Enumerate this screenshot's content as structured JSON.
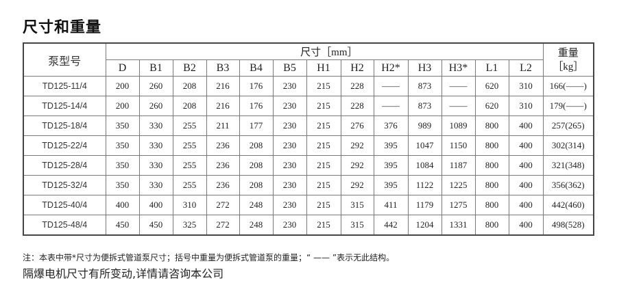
{
  "title": "尺寸和重量",
  "table": {
    "model_header": "泵型号",
    "dim_group_header": "尺寸［mm］",
    "weight_header_line1": "重量",
    "weight_header_line2": "［kg］",
    "columns": [
      "D",
      "B1",
      "B2",
      "B3",
      "B4",
      "B5",
      "H1",
      "H2",
      "H2*",
      "H3",
      "H3*",
      "L1",
      "L2"
    ],
    "rows": [
      [
        "TD125-11/4",
        "200",
        "260",
        "208",
        "216",
        "176",
        "230",
        "215",
        "228",
        "——",
        "873",
        "——",
        "620",
        "310",
        "166(——)"
      ],
      [
        "TD125-14/4",
        "200",
        "260",
        "208",
        "216",
        "176",
        "230",
        "215",
        "228",
        "——",
        "873",
        "——",
        "620",
        "310",
        "179(——)"
      ],
      [
        "TD125-18/4",
        "350",
        "330",
        "255",
        "211",
        "177",
        "230",
        "215",
        "276",
        "376",
        "989",
        "1089",
        "800",
        "400",
        "257(265)"
      ],
      [
        "TD125-22/4",
        "350",
        "330",
        "255",
        "236",
        "208",
        "230",
        "215",
        "292",
        "395",
        "1047",
        "1150",
        "800",
        "400",
        "302(314)"
      ],
      [
        "TD125-28/4",
        "350",
        "330",
        "255",
        "236",
        "208",
        "230",
        "215",
        "292",
        "395",
        "1084",
        "1187",
        "800",
        "400",
        "321(348)"
      ],
      [
        "TD125-32/4",
        "350",
        "330",
        "255",
        "236",
        "208",
        "230",
        "215",
        "292",
        "395",
        "1122",
        "1225",
        "800",
        "400",
        "356(362)"
      ],
      [
        "TD125-40/4",
        "400",
        "400",
        "310",
        "272",
        "248",
        "230",
        "215",
        "315",
        "411",
        "1179",
        "1275",
        "800",
        "400",
        "442(460)"
      ],
      [
        "TD125-48/4",
        "450",
        "450",
        "325",
        "272",
        "248",
        "230",
        "215",
        "315",
        "442",
        "1204",
        "1331",
        "800",
        "400",
        "498(528)"
      ]
    ]
  },
  "notes": {
    "line1": "注：本表中带*尺寸为便拆式管道泵尺寸；括号中重量为便拆式管道泵的重量；“ —— ”表示无此结构。",
    "line2": "隔爆电机尺寸有所变动,详情请咨询本公司"
  }
}
